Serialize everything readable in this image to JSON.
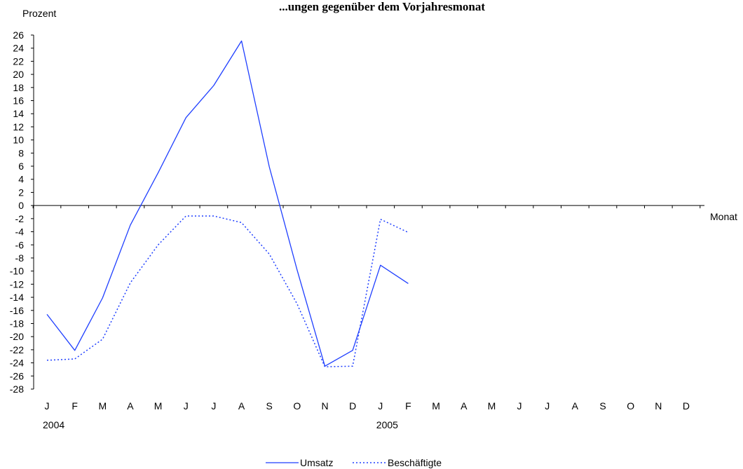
{
  "chart_data": {
    "type": "line",
    "title": "...ungen gegenüber dem Vorjahresmonat",
    "ylabel": "Prozent",
    "xlabel": "Monat",
    "ylim": [
      -28,
      26
    ],
    "yticks": [
      26,
      24,
      22,
      20,
      18,
      16,
      14,
      12,
      10,
      8,
      6,
      4,
      2,
      0,
      -2,
      -4,
      -6,
      -8,
      -10,
      -12,
      -14,
      -16,
      -18,
      -20,
      -22,
      -24,
      -26,
      -28
    ],
    "categories": [
      "J",
      "F",
      "M",
      "A",
      "M",
      "J",
      "J",
      "A",
      "S",
      "O",
      "N",
      "D",
      "J",
      "F",
      "M",
      "A",
      "M",
      "J",
      "J",
      "A",
      "S",
      "O",
      "N",
      "D"
    ],
    "year_labels": [
      {
        "index": 0,
        "label": "2004"
      },
      {
        "index": 12,
        "label": "2005"
      }
    ],
    "series": [
      {
        "name": "Umsatz",
        "style": "solid",
        "color": "#1f3fff",
        "values": [
          -16.6,
          -22.1,
          -14.1,
          -3.0,
          5.0,
          13.4,
          18.3,
          25.1,
          5.9,
          -9.8,
          -24.5,
          -22.1,
          -9.1,
          -11.9,
          null,
          null,
          null,
          null,
          null,
          null,
          null,
          null,
          null,
          null
        ]
      },
      {
        "name": "Beschäftigte",
        "style": "dotted",
        "color": "#1f3fff",
        "values": [
          -23.6,
          -23.4,
          -20.4,
          -11.8,
          -6.0,
          -1.6,
          -1.6,
          -2.6,
          -7.4,
          -15.0,
          -24.6,
          -24.5,
          -2.1,
          -4.1,
          null,
          null,
          null,
          null,
          null,
          null,
          null,
          null,
          null,
          null
        ]
      }
    ],
    "grid": false,
    "legend_position": "bottom-center"
  }
}
